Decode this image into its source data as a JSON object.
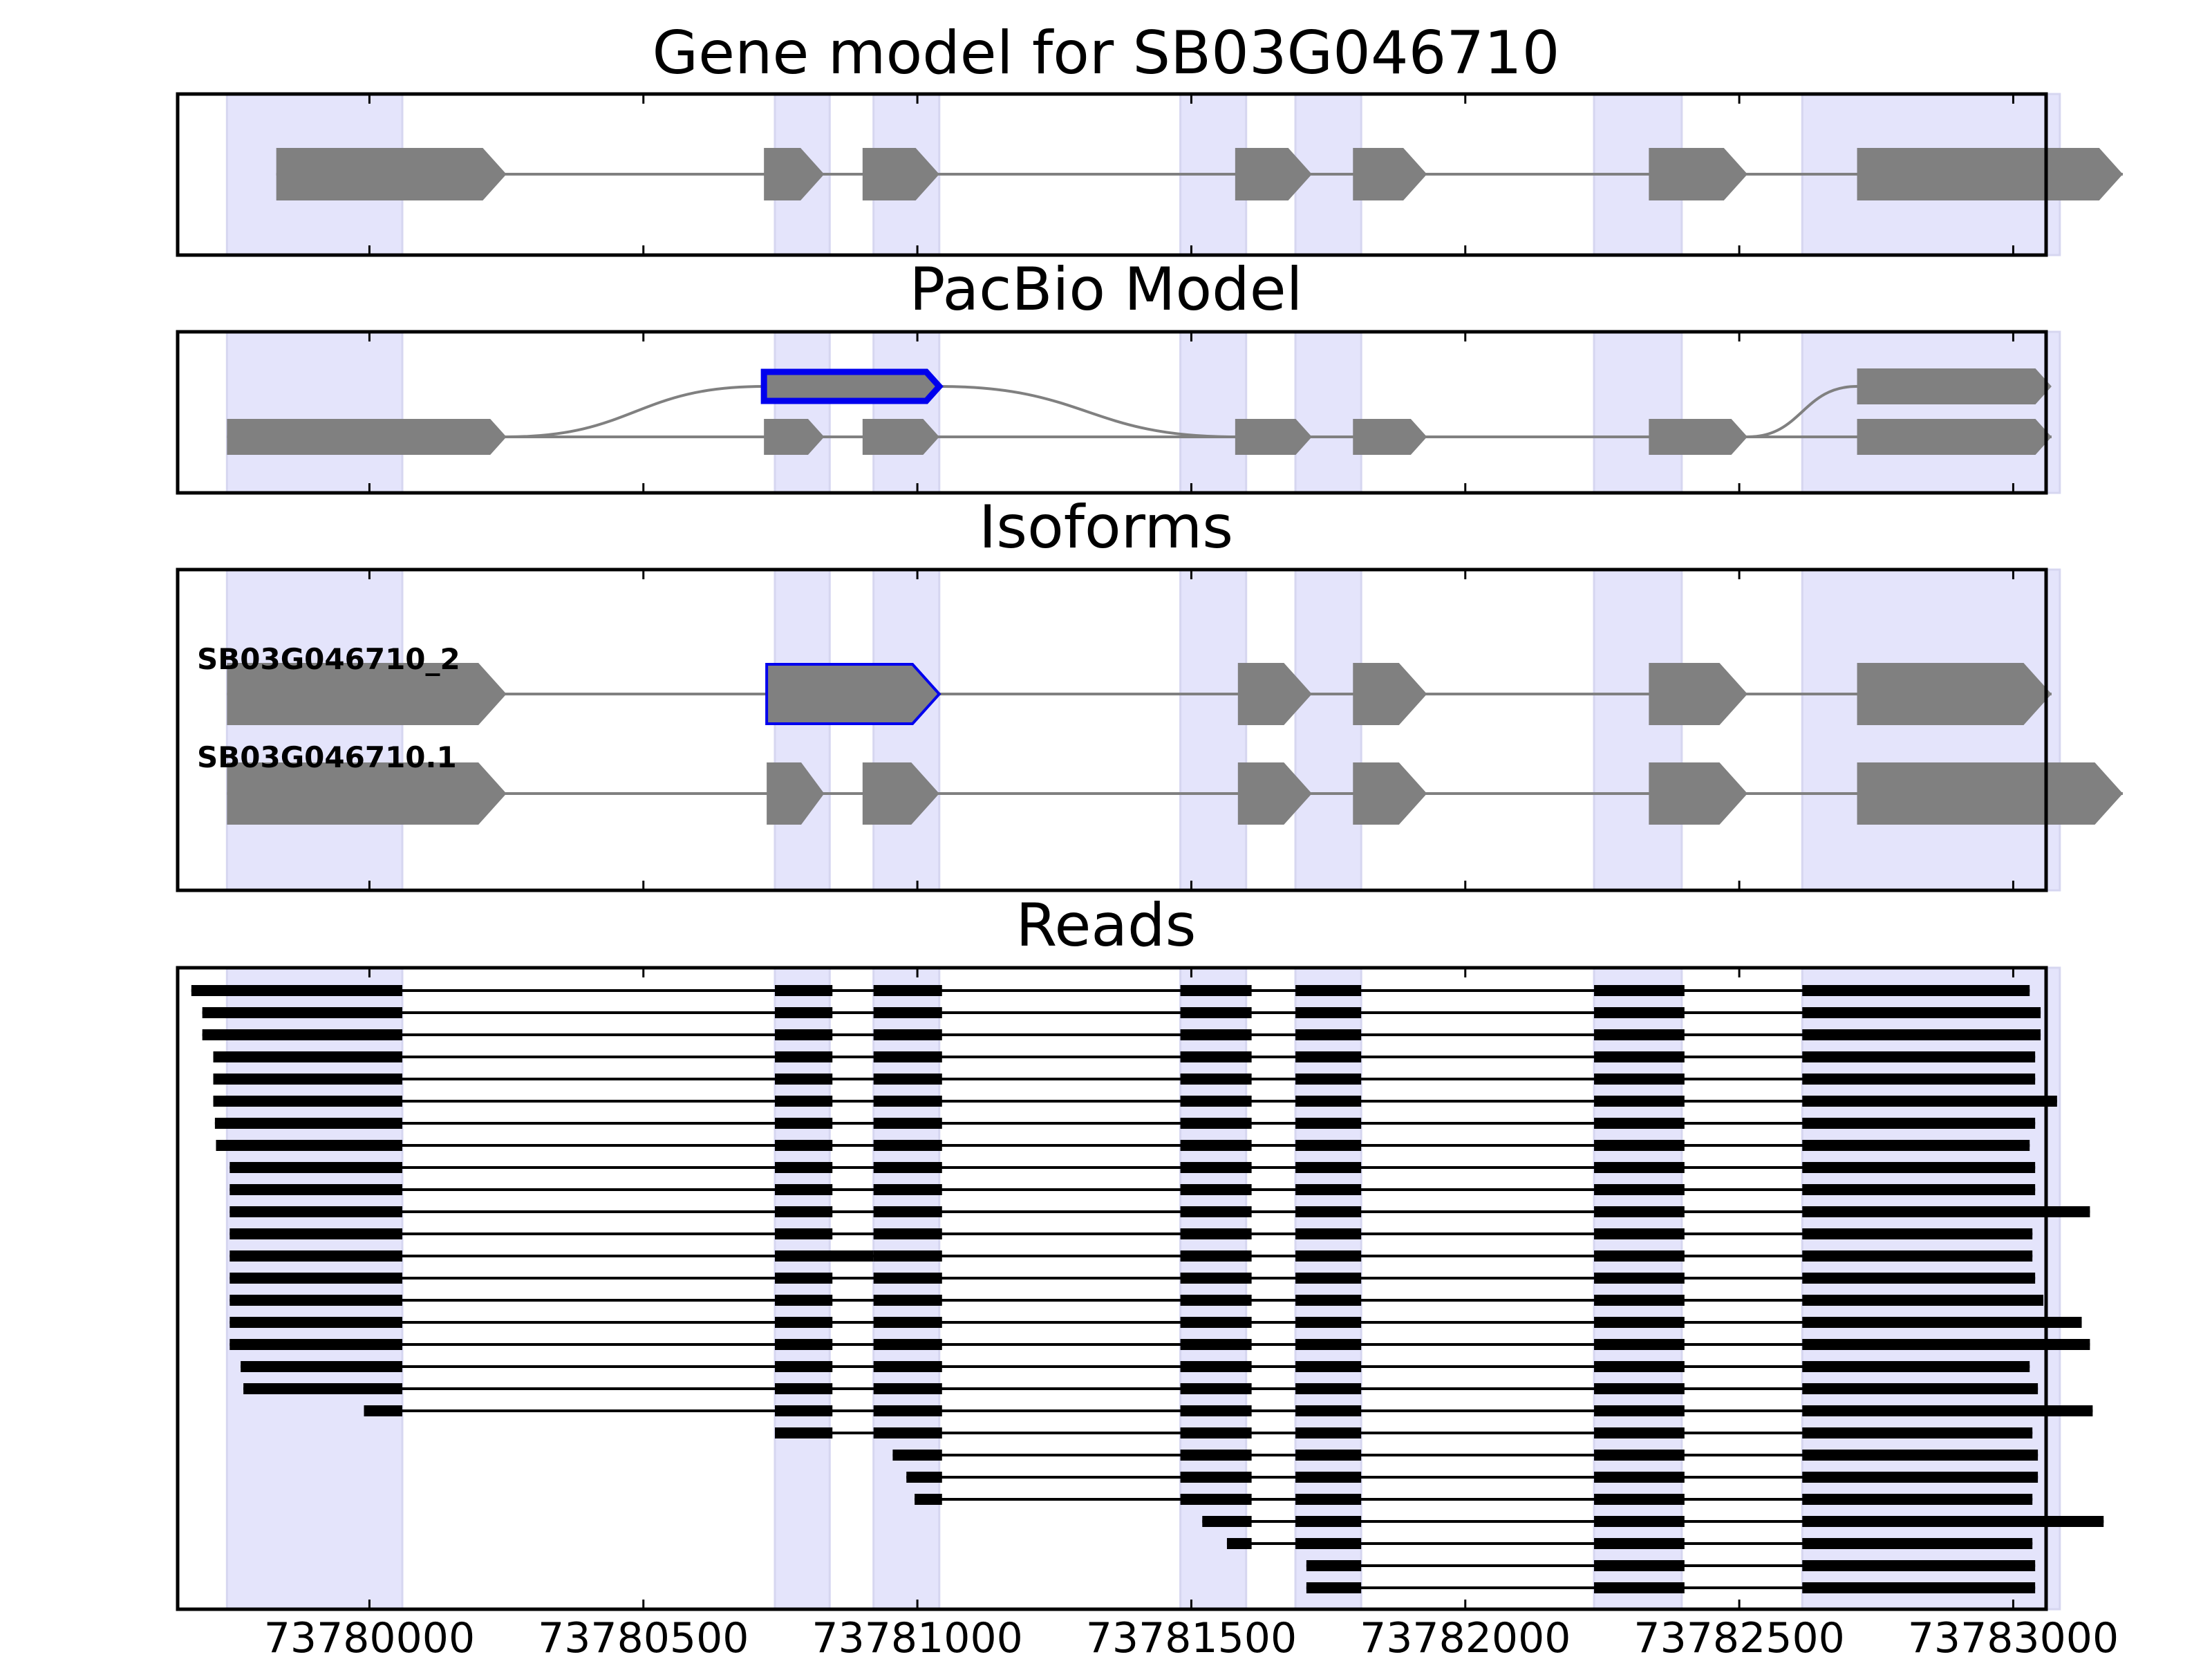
{
  "chart_data": [
    {
      "type": "gene-model",
      "title": "Gene model for SB03G046710",
      "exons": [
        {
          "start": 73779830,
          "end": 73780250,
          "strand": "+"
        },
        {
          "start": 73780720,
          "end": 73780830,
          "strand": "+"
        },
        {
          "start": 73780900,
          "end": 73781040,
          "strand": "+"
        },
        {
          "start": 73781580,
          "end": 73781720,
          "strand": "+"
        },
        {
          "start": 73781795,
          "end": 73781930,
          "strand": "+"
        },
        {
          "start": 73782335,
          "end": 73782515,
          "strand": "+"
        },
        {
          "start": 73782715,
          "end": 73783200,
          "strand": "+"
        }
      ]
    },
    {
      "type": "pacbio-model",
      "title": "PacBio Model",
      "paths": [
        {
          "highlight": false,
          "exons": [
            [
              73779740,
              73780250
            ],
            [
              73780720,
              73780830
            ],
            [
              73780900,
              73781040
            ],
            [
              73781580,
              73781720
            ],
            [
              73781795,
              73781930
            ],
            [
              73782335,
              73782515
            ],
            [
              73782715,
              73783070
            ]
          ]
        },
        {
          "highlight": true,
          "exons": [
            [
              73780720,
              73781040
            ]
          ]
        },
        {
          "highlight": false,
          "exons": [
            [
              73782715,
              73783070
            ]
          ]
        }
      ],
      "arcs": [
        {
          "from": 73780250,
          "to": 73780720,
          "from_row": "lower",
          "to_row": "upper"
        },
        {
          "from": 73781040,
          "to": 73781580,
          "from_row": "upper",
          "to_row": "lower"
        },
        {
          "from": 73782515,
          "to": 73782715,
          "from_row": "lower",
          "to_row": "upper"
        }
      ]
    },
    {
      "type": "isoforms",
      "title": "Isoforms",
      "isoforms": [
        {
          "name": "SB03G046710_2",
          "exons": [
            [
              73779740,
              73780250
            ],
            [
              73780725,
              73781040,
              "highlight"
            ],
            [
              73781585,
              73781720
            ],
            [
              73781795,
              73781930
            ],
            [
              73782335,
              73782515
            ],
            [
              73782715,
              73783070
            ]
          ]
        },
        {
          "name": "SB03G046710.1",
          "exons": [
            [
              73779740,
              73780250
            ],
            [
              73780725,
              73780830
            ],
            [
              73780900,
              73781040
            ],
            [
              73781585,
              73781720
            ],
            [
              73781795,
              73781930
            ],
            [
              73782335,
              73782515
            ],
            [
              73782715,
              73783200
            ]
          ]
        }
      ]
    },
    {
      "type": "reads",
      "title": "Reads",
      "xlim": [
        73779650,
        73783060
      ],
      "xticks": [
        73780000,
        73780500,
        73781000,
        73781500,
        73782000,
        73782500,
        73783000
      ],
      "xtick_labels": [
        "73780000",
        "73780500",
        "73781000",
        "73781500",
        "73782000",
        "73782500",
        "73783000"
      ],
      "shaded_regions": [
        [
          73779740,
          73780060
        ],
        [
          73780740,
          73780840
        ],
        [
          73780920,
          73781040
        ],
        [
          73781480,
          73781600
        ],
        [
          73781690,
          73781810
        ],
        [
          73782235,
          73782395
        ],
        [
          73782615,
          73783085
        ]
      ],
      "reads": [
        {
          "start": 73779675,
          "end": 73783030,
          "missing_exons": []
        },
        {
          "start": 73779695,
          "end": 73783050,
          "missing_exons": []
        },
        {
          "start": 73779695,
          "end": 73783050,
          "missing_exons": []
        },
        {
          "start": 73779715,
          "end": 73783040,
          "missing_exons": []
        },
        {
          "start": 73779715,
          "end": 73783040,
          "missing_exons": []
        },
        {
          "start": 73779715,
          "end": 73783080,
          "missing_exons": []
        },
        {
          "start": 73779718,
          "end": 73783040,
          "missing_exons": []
        },
        {
          "start": 73779720,
          "end": 73783030,
          "missing_exons": []
        },
        {
          "start": 73779745,
          "end": 73783040,
          "missing_exons": []
        },
        {
          "start": 73779745,
          "end": 73783040,
          "missing_exons": []
        },
        {
          "start": 73779745,
          "end": 73783140,
          "missing_exons": []
        },
        {
          "start": 73779745,
          "end": 73783035,
          "missing_exons": []
        },
        {
          "start": 73779745,
          "end": 73783035,
          "missing_exons": [],
          "exon2_extended_to": 73780920
        },
        {
          "start": 73779745,
          "end": 73783040,
          "missing_exons": []
        },
        {
          "start": 73779745,
          "end": 73783055,
          "missing_exons": []
        },
        {
          "start": 73779745,
          "end": 73783125,
          "missing_exons": []
        },
        {
          "start": 73779745,
          "end": 73783140,
          "missing_exons": []
        },
        {
          "start": 73779765,
          "end": 73783030,
          "missing_exons": []
        },
        {
          "start": 73779770,
          "end": 73783045,
          "missing_exons": []
        },
        {
          "start": 73779990,
          "end": 73783145,
          "missing_exons": []
        },
        {
          "start": 73780740,
          "end": 73783035,
          "missing_exons": []
        },
        {
          "start": 73780955,
          "end": 73783045,
          "missing_exons": []
        },
        {
          "start": 73780980,
          "end": 73783045,
          "missing_exons": []
        },
        {
          "start": 73780995,
          "end": 73783035,
          "missing_exons": []
        },
        {
          "start": 73781520,
          "end": 73783165,
          "missing_exons": []
        },
        {
          "start": 73781565,
          "end": 73783035,
          "missing_exons": []
        },
        {
          "start": 73781710,
          "end": 73783040,
          "missing_exons": []
        },
        {
          "start": 73781710,
          "end": 73783040,
          "missing_exons": []
        }
      ],
      "read_exons": [
        [
          73779675,
          73780060
        ],
        [
          73780740,
          73780845
        ],
        [
          73780920,
          73781045
        ],
        [
          73781480,
          73781610
        ],
        [
          73781690,
          73781810
        ],
        [
          73782235,
          73782400
        ],
        [
          73782615,
          73783165
        ]
      ]
    }
  ]
}
